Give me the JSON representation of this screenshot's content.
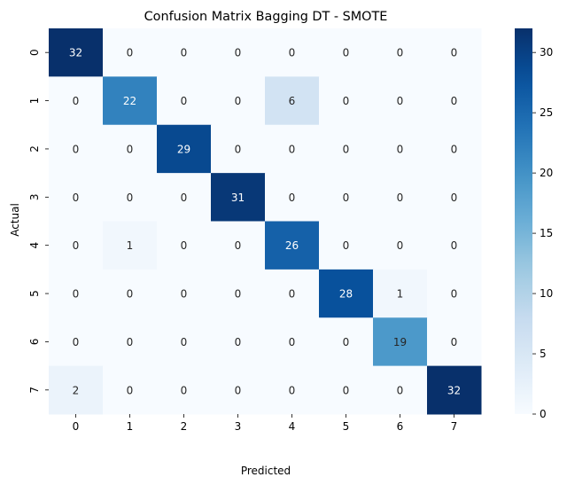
{
  "chart_data": {
    "type": "heatmap",
    "title": "Confusion Matrix Bagging DT - SMOTE",
    "xlabel": "Predicted",
    "ylabel": "Actual",
    "x_categories": [
      "0",
      "1",
      "2",
      "3",
      "4",
      "5",
      "6",
      "7"
    ],
    "y_categories": [
      "0",
      "1",
      "2",
      "3",
      "4",
      "5",
      "6",
      "7"
    ],
    "values": [
      [
        32,
        0,
        0,
        0,
        0,
        0,
        0,
        0
      ],
      [
        0,
        22,
        0,
        0,
        6,
        0,
        0,
        0
      ],
      [
        0,
        0,
        29,
        0,
        0,
        0,
        0,
        0
      ],
      [
        0,
        0,
        0,
        31,
        0,
        0,
        0,
        0
      ],
      [
        0,
        1,
        0,
        0,
        26,
        0,
        0,
        0
      ],
      [
        0,
        0,
        0,
        0,
        0,
        28,
        1,
        0
      ],
      [
        0,
        0,
        0,
        0,
        0,
        0,
        19,
        0
      ],
      [
        2,
        0,
        0,
        0,
        0,
        0,
        0,
        32
      ]
    ],
    "colormap": "Blues",
    "vmin": 0,
    "vmax": 32,
    "colorbar_ticks": [
      0,
      5,
      10,
      15,
      20,
      25,
      30
    ]
  }
}
